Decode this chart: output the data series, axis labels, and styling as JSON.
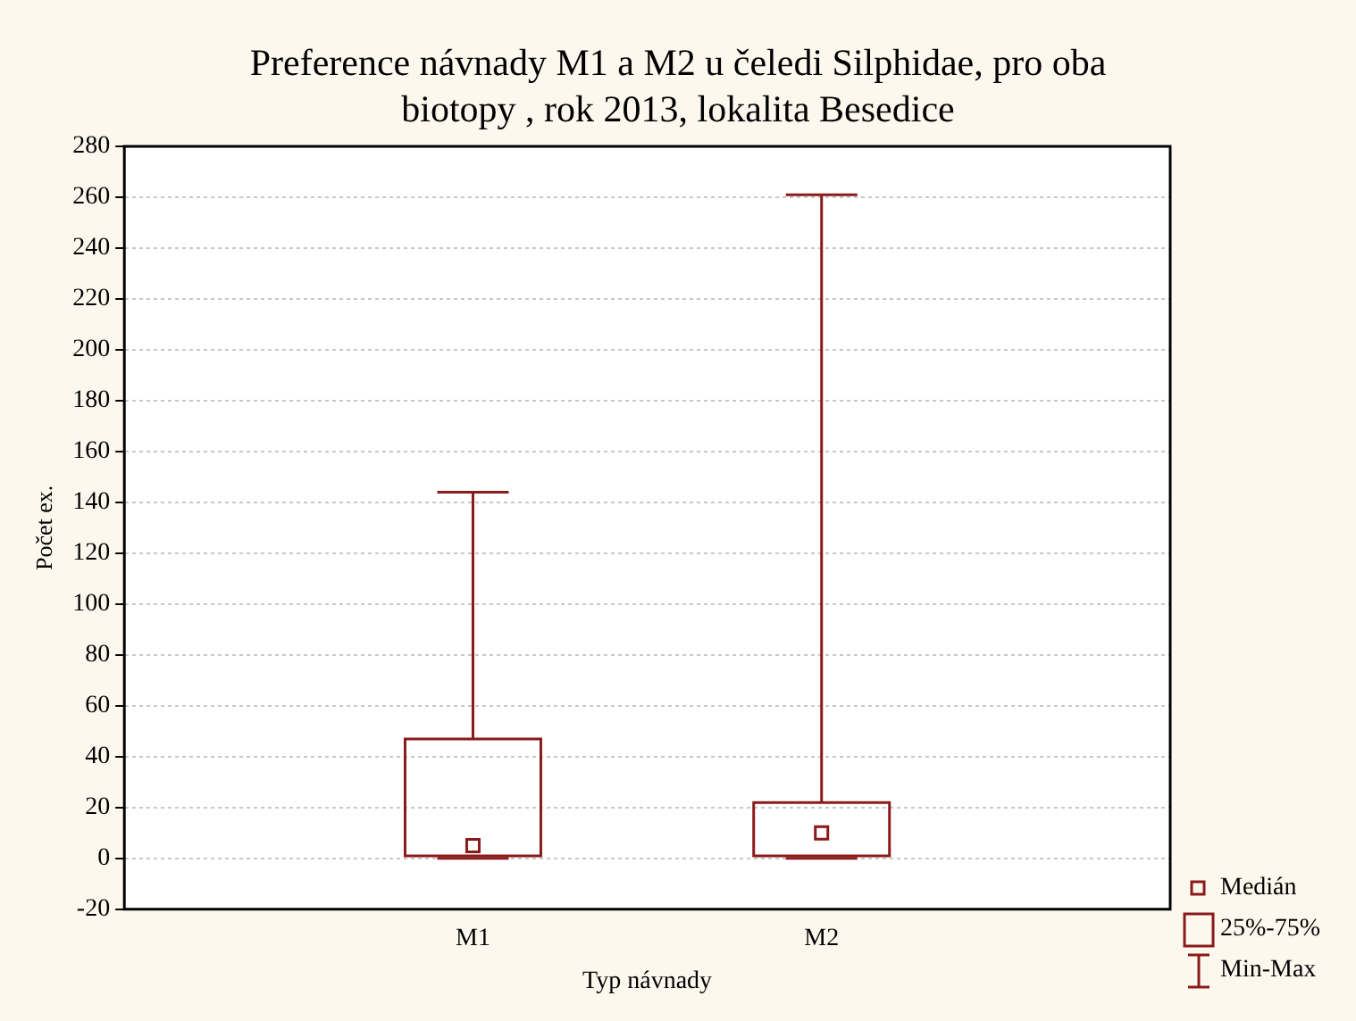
{
  "chart_data": {
    "type": "box",
    "title": "Preference návnady M1 a M2 u čeledi Silphidae, pro oba biotopy , rok 2013, lokalita Besedice",
    "xlabel": "Typ návnady",
    "ylabel": "Počet ex.",
    "categories": [
      "M1",
      "M2"
    ],
    "series": [
      {
        "color": "#8b1a1a",
        "boxes": [
          {
            "low": 0,
            "q1": 1,
            "median": 5,
            "q3": 47,
            "high": 144
          },
          {
            "low": 0,
            "q1": 1,
            "median": 10,
            "q3": 22,
            "high": 261
          }
        ]
      }
    ],
    "ylim": [
      -20,
      280
    ],
    "yticks": [
      -20,
      0,
      20,
      40,
      60,
      80,
      100,
      120,
      140,
      160,
      180,
      200,
      220,
      240,
      260,
      280
    ],
    "grid": "y",
    "annotations": [
      "Medián",
      "25%-75%",
      "Min-Max"
    ]
  }
}
